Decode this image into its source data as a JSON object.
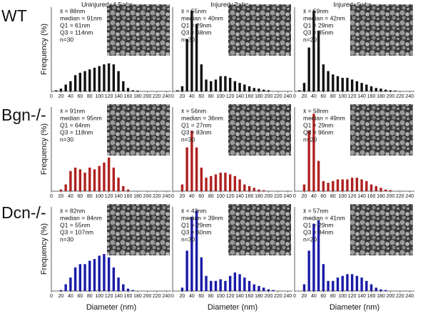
{
  "column_titles": [
    "Uninjured+4.5wks",
    "Injured+3wks",
    "Injured+6wks"
  ],
  "row_titles": [
    "WT",
    "Bgn-/-",
    "Dcn-/-"
  ],
  "chart_data": [
    {
      "type": "bar",
      "color": "#111111",
      "ylabel": "Frequency (%)",
      "annotations": [
        "x̄ = 88nm",
        "median = 91nm",
        "Q1 = 61nm",
        "Q3 = 114nm",
        "n=30"
      ],
      "x": [
        10,
        20,
        30,
        40,
        50,
        60,
        70,
        80,
        90,
        100,
        110,
        120,
        130,
        140,
        150,
        160,
        170,
        180
      ],
      "values": [
        0.3,
        0.8,
        2,
        3,
        4.8,
        5.5,
        6,
        6.5,
        7,
        7.5,
        8,
        8.3,
        8,
        6,
        3,
        1,
        0.3,
        0.2
      ],
      "xlim": [
        0,
        250
      ],
      "ylim": [
        0,
        25
      ],
      "xticks": [
        0,
        20,
        40,
        60,
        80,
        100,
        120,
        140,
        160,
        180,
        200,
        220,
        240
      ]
    },
    {
      "type": "bar",
      "color": "#111111",
      "annotations": [
        "x̄ = 55nm",
        "median = 40nm",
        "Q1 = 29nm",
        "Q3 = 68nm",
        "n=30"
      ],
      "x": [
        10,
        20,
        30,
        40,
        50,
        60,
        70,
        80,
        90,
        100,
        110,
        120,
        130,
        140,
        150,
        160,
        170,
        180,
        190,
        200
      ],
      "values": [
        0.3,
        1.5,
        15.5,
        24,
        20,
        8,
        3.5,
        3,
        3.5,
        4.5,
        4.5,
        4,
        3,
        2.5,
        2,
        1.5,
        1,
        0.8,
        0.5,
        0.3
      ],
      "xlim": [
        0,
        250
      ],
      "ylim": [
        0,
        25
      ],
      "xticks": [
        0,
        20,
        40,
        60,
        80,
        100,
        120,
        140,
        160,
        180,
        200,
        220,
        240
      ]
    },
    {
      "type": "bar",
      "color": "#111111",
      "annotations": [
        "x̄ = 59nm",
        "median = 42nm",
        "Q1 = 29nm",
        "Q3 = 85nm",
        "n=20"
      ],
      "x": [
        10,
        20,
        30,
        40,
        50,
        60,
        70,
        80,
        90,
        100,
        110,
        120,
        130,
        140,
        150,
        160,
        170,
        180,
        190,
        200,
        210
      ],
      "values": [
        0.3,
        2.5,
        13,
        24,
        18,
        8,
        6,
        5,
        4.5,
        4,
        4,
        3.5,
        3,
        2.5,
        2,
        1.5,
        1,
        0.8,
        0.5,
        0.3,
        0.2
      ],
      "xlim": [
        0,
        250
      ],
      "ylim": [
        0,
        25
      ],
      "xticks": [
        0,
        20,
        40,
        60,
        80,
        100,
        120,
        140,
        160,
        180,
        200,
        220,
        240
      ]
    },
    {
      "type": "bar",
      "color": "#b02020",
      "ylabel": "Frequency (%)",
      "annotations": [
        "x̄ = 91nm",
        "median = 95nm",
        "Q1 = 64nm",
        "Q3 = 118nm",
        "n=30"
      ],
      "x": [
        20,
        30,
        40,
        50,
        60,
        70,
        80,
        90,
        100,
        110,
        120,
        130,
        140,
        150,
        160
      ],
      "values": [
        0.5,
        2,
        6,
        7,
        6.5,
        5.5,
        7,
        6.5,
        7.5,
        8.5,
        10,
        7,
        4,
        1.5,
        0.5
      ],
      "xlim": [
        0,
        250
      ],
      "ylim": [
        0,
        25
      ],
      "xticks": [
        0,
        20,
        40,
        60,
        80,
        100,
        120,
        140,
        160,
        180,
        200,
        220,
        240
      ]
    },
    {
      "type": "bar",
      "color": "#b02020",
      "annotations": [
        "x̄ = 56nm",
        "median = 36nm",
        "Q1 = 27nm",
        "Q3 = 83nm",
        "n=30"
      ],
      "x": [
        20,
        30,
        40,
        50,
        60,
        70,
        80,
        90,
        100,
        110,
        120,
        130,
        140,
        150,
        160,
        170,
        180,
        190
      ],
      "values": [
        2,
        13,
        18,
        13,
        7,
        4,
        4.5,
        5,
        5.5,
        5.5,
        5,
        4.5,
        3.5,
        2,
        1.5,
        1,
        0.5,
        0.3
      ],
      "xlim": [
        0,
        250
      ],
      "ylim": [
        0,
        25
      ],
      "xticks": [
        0,
        20,
        40,
        60,
        80,
        100,
        120,
        140,
        160,
        180,
        200,
        220,
        240
      ]
    },
    {
      "type": "bar",
      "color": "#b02020",
      "annotations": [
        "x̄ = 58nm",
        "median = 49nm",
        "Q1 = 29nm",
        "Q3 = 96nm",
        "n=20"
      ],
      "x": [
        20,
        30,
        40,
        50,
        60,
        70,
        80,
        90,
        100,
        110,
        120,
        130,
        140,
        150,
        160,
        170,
        180,
        190,
        200
      ],
      "values": [
        2,
        18,
        23,
        9,
        3,
        2.5,
        3,
        3.5,
        3.5,
        3.5,
        4,
        4,
        3.5,
        3,
        2,
        1.5,
        1,
        0.5,
        0.3
      ],
      "xlim": [
        0,
        250
      ],
      "ylim": [
        0,
        25
      ],
      "xticks": [
        0,
        20,
        40,
        60,
        80,
        100,
        120,
        140,
        160,
        180,
        200,
        220,
        240
      ]
    },
    {
      "type": "bar",
      "color": "#1a1aa8",
      "ylabel": "Frequency (%)",
      "xlabel": "Diameter (nm)",
      "annotations": [
        "x̄ = 82nm",
        "median = 84nm",
        "Q1 = 55nm",
        "Q3 = 107nm",
        "n=30"
      ],
      "x": [
        20,
        30,
        40,
        50,
        60,
        70,
        80,
        90,
        100,
        110,
        120,
        130,
        140,
        150,
        160,
        170
      ],
      "values": [
        0.3,
        2,
        4,
        7,
        8,
        8,
        9,
        9.5,
        10.5,
        11,
        10,
        7,
        4,
        2,
        0.7,
        0.3
      ],
      "xlim": [
        0,
        250
      ],
      "ylim": [
        0,
        25
      ],
      "xticks": [
        0,
        20,
        40,
        60,
        80,
        100,
        120,
        140,
        160,
        180,
        200,
        220,
        240
      ]
    },
    {
      "type": "bar",
      "color": "#1a1aa8",
      "xlabel": "Diameter (nm)",
      "annotations": [
        "x̄ = 42nm",
        "median = 39nm",
        "Q1 = 29nm",
        "Q3 = 60nm",
        "n=30"
      ],
      "x": [
        20,
        30,
        40,
        50,
        60,
        70,
        80,
        90,
        100,
        110,
        120,
        130,
        140,
        150,
        160,
        170,
        180,
        190,
        200,
        210
      ],
      "values": [
        1,
        12,
        22,
        24,
        10,
        4.5,
        3,
        3,
        3.5,
        3,
        4.5,
        5.5,
        5,
        4,
        3,
        2,
        1.5,
        1,
        0.5,
        0.3
      ],
      "xlim": [
        0,
        250
      ],
      "ylim": [
        0,
        25
      ],
      "xticks": [
        0,
        20,
        40,
        60,
        80,
        100,
        120,
        140,
        160,
        180,
        200,
        220,
        240
      ]
    },
    {
      "type": "bar",
      "color": "#1a1aa8",
      "xlabel": "Diameter (nm)",
      "annotations": [
        "x̄ = 57nm",
        "median = 41nm",
        "Q1 = 29nm",
        "Q3 = 84nm",
        "n=20"
      ],
      "x": [
        20,
        30,
        40,
        50,
        60,
        70,
        80,
        90,
        100,
        110,
        120,
        130,
        140,
        150,
        160,
        170,
        180,
        190
      ],
      "values": [
        2,
        12,
        20,
        21,
        8,
        3,
        3,
        4,
        4.5,
        5,
        5,
        4.5,
        4,
        3,
        2,
        1,
        0.5,
        0.3
      ],
      "xlim": [
        0,
        250
      ],
      "ylim": [
        0,
        25
      ],
      "xticks": [
        0,
        20,
        40,
        60,
        80,
        100,
        120,
        140,
        160,
        180,
        200,
        220,
        240
      ]
    }
  ]
}
